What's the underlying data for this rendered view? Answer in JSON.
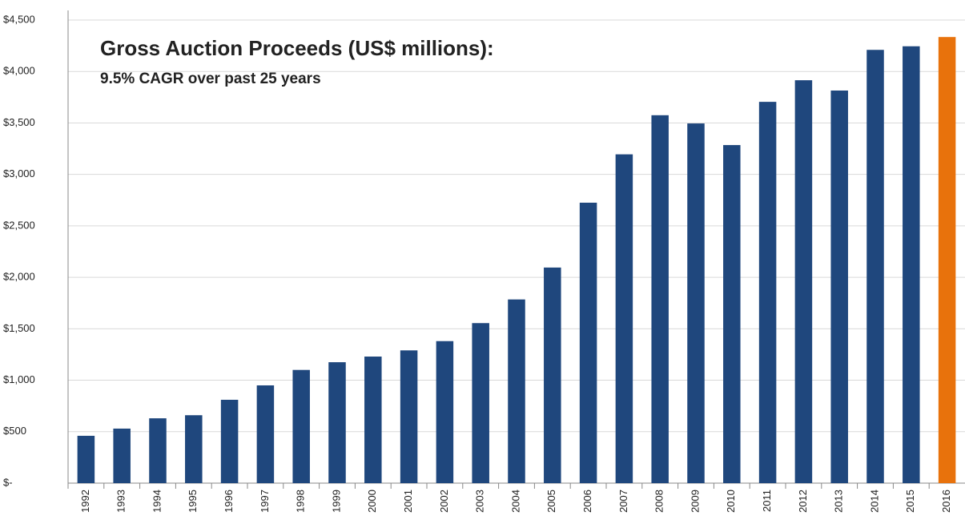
{
  "chart_data": {
    "type": "bar",
    "title": "Gross Auction Proceeds (US$ millions):",
    "subtitle": "9.5% CAGR over past 25 years",
    "categories": [
      "1992",
      "1993",
      "1994",
      "1995",
      "1996",
      "1997",
      "1998",
      "1999",
      "2000",
      "2001",
      "2002",
      "2003",
      "2004",
      "2005",
      "2006",
      "2007",
      "2008",
      "2009",
      "2010",
      "2011",
      "2012",
      "2013",
      "2014",
      "2015",
      "2016"
    ],
    "values": [
      460,
      530,
      630,
      660,
      810,
      950,
      1100,
      1175,
      1230,
      1290,
      1380,
      1555,
      1785,
      2095,
      2725,
      3195,
      3575,
      3495,
      3285,
      3705,
      3915,
      3815,
      4210,
      4245,
      4335
    ],
    "colors": [
      "#1f477d",
      "#1f477d",
      "#1f477d",
      "#1f477d",
      "#1f477d",
      "#1f477d",
      "#1f477d",
      "#1f477d",
      "#1f477d",
      "#1f477d",
      "#1f477d",
      "#1f477d",
      "#1f477d",
      "#1f477d",
      "#1f477d",
      "#1f477d",
      "#1f477d",
      "#1f477d",
      "#1f477d",
      "#1f477d",
      "#1f477d",
      "#1f477d",
      "#1f477d",
      "#1f477d",
      "#e8720c"
    ],
    "ylim": [
      0,
      4500
    ],
    "yticks": [
      {
        "value": 0,
        "label": "$-"
      },
      {
        "value": 500,
        "label": "$500"
      },
      {
        "value": 1000,
        "label": "$1,000"
      },
      {
        "value": 1500,
        "label": "$1,500"
      },
      {
        "value": 2000,
        "label": "$2,000"
      },
      {
        "value": 2500,
        "label": "$2,500"
      },
      {
        "value": 3000,
        "label": "$3,000"
      },
      {
        "value": 3500,
        "label": "$3,500"
      },
      {
        "value": 4000,
        "label": "$4,000"
      },
      {
        "value": 4500,
        "label": "$4,500"
      }
    ],
    "grid": true
  }
}
